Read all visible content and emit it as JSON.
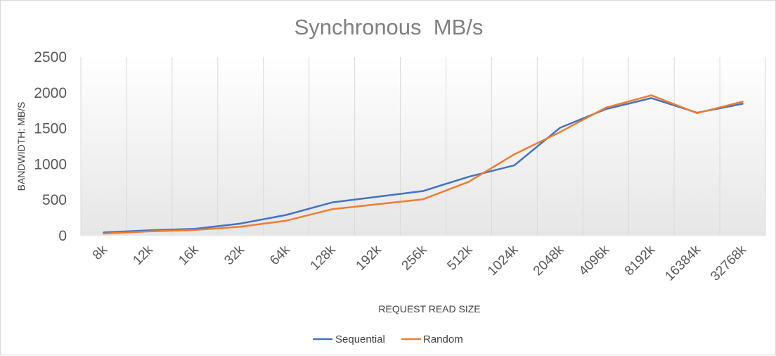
{
  "chart_data": {
    "type": "line",
    "title": "Synchronous  MB/s",
    "xlabel": "REQUEST READ SIZE",
    "ylabel": "BANDWIDTH: MB/S",
    "categories": [
      "8k",
      "12k",
      "16k",
      "32k",
      "64k",
      "128k",
      "192k",
      "256k",
      "512k",
      "1024k",
      "2048k",
      "4096k",
      "8192k",
      "16384k",
      "32768k"
    ],
    "ylim": [
      0,
      2500
    ],
    "yticks": [
      0,
      500,
      1000,
      1500,
      2000,
      2500
    ],
    "grid": "vertical",
    "legend_position": "bottom",
    "series": [
      {
        "name": "Sequential",
        "color": "#4472c4",
        "values": [
          45,
          75,
          95,
          170,
          290,
          465,
          545,
          625,
          825,
          985,
          1510,
          1770,
          1925,
          1720,
          1845
        ]
      },
      {
        "name": "Random",
        "color": "#ed7d31",
        "values": [
          30,
          60,
          80,
          125,
          210,
          370,
          440,
          510,
          755,
          1140,
          1450,
          1790,
          1965,
          1715,
          1875
        ]
      }
    ]
  }
}
